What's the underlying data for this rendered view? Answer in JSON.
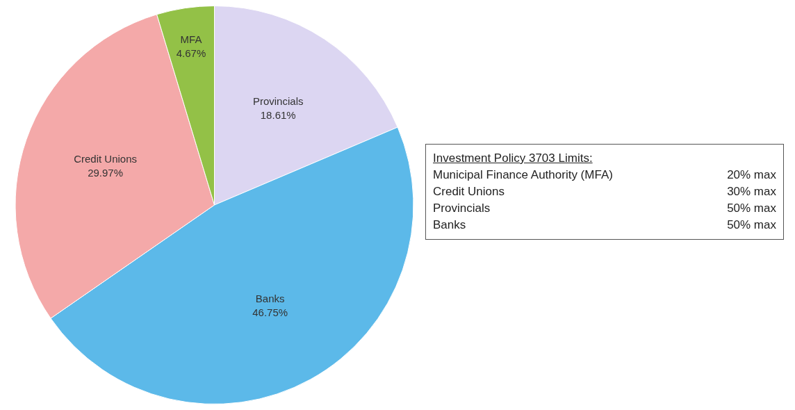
{
  "chart_data": {
    "type": "pie",
    "categories": [
      "Provincials",
      "Banks",
      "Credit Unions",
      "MFA"
    ],
    "values": [
      18.61,
      46.75,
      29.97,
      4.67
    ],
    "value_labels": [
      "18.61%",
      "46.75%",
      "29.97%",
      "4.67%"
    ],
    "colors": [
      "#dcd6f2",
      "#5cb9e9",
      "#f4a9a9",
      "#93c147"
    ],
    "legend": false,
    "annotations": [
      "Investment Policy 3703 Limits:",
      "Municipal Finance Authority (MFA)",
      "20% max",
      "Credit Unions",
      "30% max",
      "Provincials",
      "50% max",
      "Banks",
      "50% max"
    ]
  }
}
